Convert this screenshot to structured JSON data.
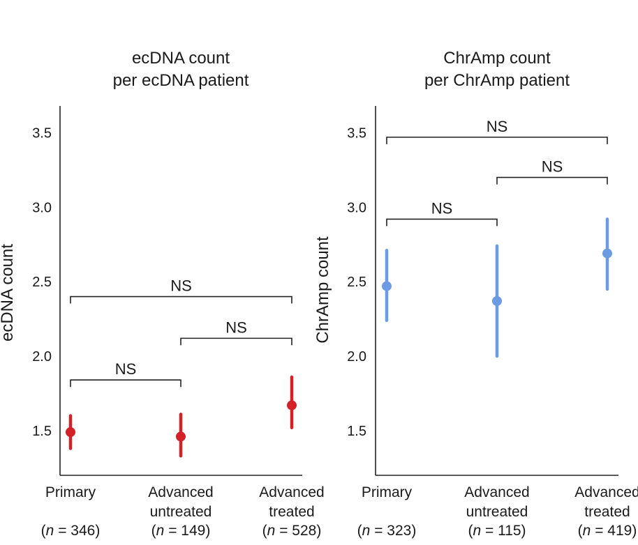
{
  "chart_data": [
    {
      "type": "point-range",
      "title_lines": [
        "ecDNA count",
        "per ecDNA patient"
      ],
      "ylabel": "ecDNA count",
      "ylim": [
        1.2,
        3.68
      ],
      "yticks": [
        "1.5",
        "2.0",
        "2.5",
        "3.0",
        "3.5"
      ],
      "color": "#d42027",
      "categories": [
        {
          "name_lines": [
            "Primary"
          ],
          "n_prefix": "(",
          "n_var": "n",
          "n_value": " = 346)",
          "value": 1.49,
          "lower": 1.38,
          "upper": 1.6
        },
        {
          "name_lines": [
            "Advanced",
            "untreated"
          ],
          "n_prefix": "(",
          "n_var": "n",
          "n_value": " = 149)",
          "value": 1.46,
          "lower": 1.33,
          "upper": 1.61
        },
        {
          "name_lines": [
            "Advanced",
            "treated"
          ],
          "n_prefix": "(",
          "n_var": "n",
          "n_value": " = 528)",
          "value": 1.67,
          "lower": 1.52,
          "upper": 1.86
        }
      ],
      "comparisons": [
        {
          "from": 0,
          "to": 1,
          "label": "NS",
          "y": 1.84
        },
        {
          "from": 1,
          "to": 2,
          "label": "NS",
          "y": 2.12
        },
        {
          "from": 0,
          "to": 2,
          "label": "NS",
          "y": 2.4
        }
      ]
    },
    {
      "type": "point-range",
      "title_lines": [
        "ChrAmp count",
        "per ChrAmp patient"
      ],
      "ylabel": "ChrAmp count",
      "ylim": [
        1.2,
        3.68
      ],
      "yticks": [
        "1.5",
        "2.0",
        "2.5",
        "3.0",
        "3.5"
      ],
      "color": "#6b9be2",
      "categories": [
        {
          "name_lines": [
            "Primary"
          ],
          "n_prefix": "(",
          "n_var": "n",
          "n_value": " = 323)",
          "value": 2.47,
          "lower": 2.24,
          "upper": 2.71
        },
        {
          "name_lines": [
            "Advanced",
            "untreated"
          ],
          "n_prefix": "(",
          "n_var": "n",
          "n_value": " = 115)",
          "value": 2.37,
          "lower": 2.0,
          "upper": 2.74
        },
        {
          "name_lines": [
            "Advanced",
            "treated"
          ],
          "n_prefix": "(",
          "n_var": "n",
          "n_value": " = 419)",
          "value": 2.69,
          "lower": 2.45,
          "upper": 2.92
        }
      ],
      "comparisons": [
        {
          "from": 0,
          "to": 1,
          "label": "NS",
          "y": 2.92
        },
        {
          "from": 1,
          "to": 2,
          "label": "NS",
          "y": 3.2
        },
        {
          "from": 0,
          "to": 2,
          "label": "NS",
          "y": 3.47
        }
      ]
    }
  ]
}
